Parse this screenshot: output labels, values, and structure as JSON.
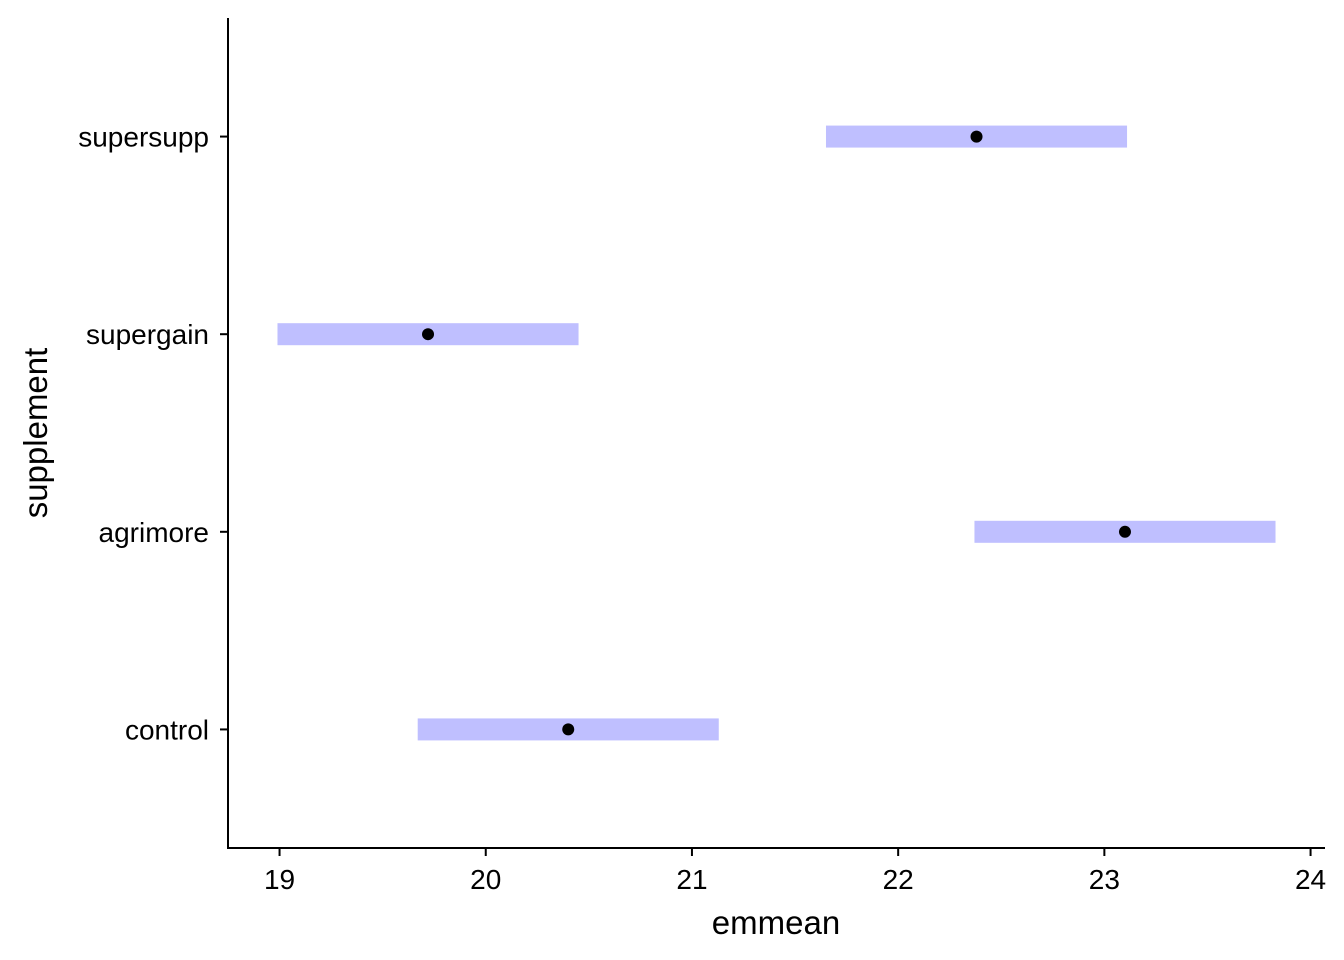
{
  "chart_data": {
    "type": "interval",
    "xlabel": "emmean",
    "ylabel": "supplement",
    "xlim": [
      18.75,
      24.07
    ],
    "x_ticks": [
      19,
      20,
      21,
      22,
      23,
      24
    ],
    "categories": [
      "control",
      "agrimore",
      "supergain",
      "supersupp"
    ],
    "emmean": [
      20.4,
      23.1,
      19.72,
      22.38
    ],
    "lower": [
      19.67,
      22.37,
      18.99,
      21.65
    ],
    "upper": [
      21.13,
      23.83,
      20.45,
      23.11
    ],
    "grid": false,
    "legend": "none",
    "colors": {
      "interval": "#bfbfff",
      "point": "#000000"
    }
  }
}
